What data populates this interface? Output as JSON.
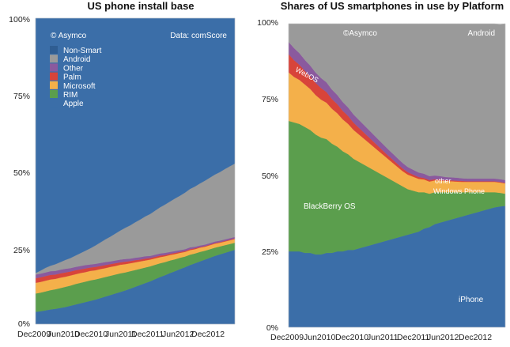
{
  "chart_data": [
    {
      "type": "area",
      "stacked": true,
      "title": "US phone install base",
      "yticks": [
        "0%",
        "25%",
        "50%",
        "75%",
        "100%"
      ],
      "xtick_labels": [
        "Dec2009",
        "Jun2010",
        "Dec2010",
        "Jun2011",
        "Dec2011",
        "Jun2012",
        "Dec2012"
      ],
      "ylim": [
        0,
        100
      ],
      "x": [
        0,
        1,
        2,
        3,
        4,
        5,
        6,
        7,
        8,
        9,
        10,
        11,
        12,
        13,
        14,
        15,
        16,
        17,
        18,
        19,
        20,
        21,
        22,
        23,
        24,
        25,
        26,
        27,
        28,
        29,
        30,
        31,
        32,
        33,
        34,
        35,
        36,
        37,
        38,
        39,
        40
      ],
      "series": [
        {
          "name": "Apple",
          "color": "#3b6ea8",
          "values": [
            4.0,
            4.2,
            4.5,
            4.8,
            5.0,
            5.3,
            5.6,
            6.0,
            6.4,
            6.8,
            7.2,
            7.6,
            8.0,
            8.5,
            9.0,
            9.5,
            10.0,
            10.5,
            11.0,
            11.6,
            12.2,
            12.8,
            13.4,
            14.0,
            14.7,
            15.4,
            16.0,
            16.7,
            17.3,
            18.0,
            18.6,
            19.3,
            19.9,
            20.5,
            21.1,
            21.7,
            22.3,
            22.8,
            23.3,
            23.8,
            24.3
          ]
        },
        {
          "name": "RIM",
          "color": "#5b9e4d",
          "values": [
            6.0,
            6.1,
            6.2,
            6.3,
            6.4,
            6.5,
            6.6,
            6.6,
            6.7,
            6.7,
            6.7,
            6.7,
            6.6,
            6.5,
            6.4,
            6.3,
            6.2,
            6.1,
            5.9,
            5.7,
            5.5,
            5.3,
            5.1,
            4.9,
            4.7,
            4.5,
            4.3,
            4.1,
            3.9,
            3.7,
            3.5,
            3.4,
            3.2,
            3.1,
            2.9,
            2.8,
            2.7,
            2.6,
            2.5,
            2.4,
            2.3
          ]
        },
        {
          "name": "Microsoft",
          "color": "#f4b04a",
          "values": [
            3.5,
            3.5,
            3.5,
            3.5,
            3.4,
            3.4,
            3.3,
            3.3,
            3.2,
            3.2,
            3.1,
            3.1,
            3.0,
            3.0,
            2.9,
            2.9,
            2.8,
            2.8,
            2.7,
            2.6,
            2.5,
            2.4,
            2.3,
            2.2,
            2.1,
            2.0,
            1.9,
            1.8,
            1.7,
            1.6,
            1.5,
            1.5,
            1.4,
            1.4,
            1.3,
            1.3,
            1.3,
            1.2,
            1.2,
            1.2,
            1.2
          ]
        },
        {
          "name": "Palm",
          "color": "#d8443a",
          "values": [
            1.5,
            1.5,
            1.5,
            1.5,
            1.4,
            1.4,
            1.4,
            1.3,
            1.3,
            1.2,
            1.2,
            1.1,
            1.1,
            1.0,
            1.0,
            0.9,
            0.9,
            0.8,
            0.8,
            0.7,
            0.7,
            0.6,
            0.6,
            0.5,
            0.5,
            0.5,
            0.4,
            0.4,
            0.4,
            0.3,
            0.3,
            0.3,
            0.3,
            0.2,
            0.2,
            0.2,
            0.2,
            0.2,
            0.2,
            0.2,
            0.2
          ]
        },
        {
          "name": "Other",
          "color": "#8a5a9e",
          "values": [
            1.2,
            1.2,
            1.2,
            1.2,
            1.2,
            1.2,
            1.2,
            1.1,
            1.1,
            1.1,
            1.1,
            1.0,
            1.0,
            1.0,
            1.0,
            0.9,
            0.9,
            0.9,
            0.9,
            0.8,
            0.8,
            0.8,
            0.8,
            0.7,
            0.7,
            0.7,
            0.7,
            0.6,
            0.6,
            0.6,
            0.6,
            0.6,
            0.5,
            0.5,
            0.5,
            0.5,
            0.5,
            0.5,
            0.5,
            0.5,
            0.5
          ]
        },
        {
          "name": "Android",
          "color": "#9a9a9a",
          "values": [
            0.5,
            1.0,
            1.5,
            1.8,
            2.2,
            2.5,
            2.9,
            3.3,
            3.7,
            4.2,
            4.7,
            5.3,
            6.0,
            6.7,
            7.4,
            8.1,
            8.8,
            9.5,
            10.2,
            10.9,
            11.6,
            12.3,
            13.0,
            13.7,
            14.4,
            15.1,
            15.8,
            16.5,
            17.2,
            17.8,
            18.5,
            19.1,
            19.7,
            20.3,
            20.9,
            21.4,
            21.9,
            22.4,
            23.0,
            23.5,
            24.0
          ]
        },
        {
          "name": "Non-Smart",
          "color": "#3b6ea8",
          "values": [
            83.3,
            82.5,
            81.6,
            80.9,
            80.4,
            79.7,
            79.0,
            78.4,
            77.6,
            76.8,
            76.0,
            75.2,
            74.3,
            73.3,
            72.3,
            71.4,
            70.4,
            69.4,
            68.5,
            67.7,
            66.7,
            65.8,
            64.8,
            64.0,
            62.9,
            61.8,
            60.9,
            59.9,
            58.9,
            58.0,
            57.0,
            55.8,
            55.0,
            54.0,
            53.1,
            52.1,
            51.1,
            50.3,
            49.3,
            48.4,
            47.5
          ]
        }
      ],
      "legend": [
        "Non-Smart",
        "Android",
        "Other",
        "Palm",
        "Microsoft",
        "RIM",
        "Apple"
      ],
      "legend_position": "top-left",
      "annotations": [
        "© Asymco",
        "Data: comScore"
      ]
    },
    {
      "type": "area",
      "stacked": true,
      "title": "Shares of US smartphones in use by Platform",
      "yticks": [
        "0%",
        "25%",
        "50%",
        "75%",
        "100%"
      ],
      "xtick_labels": [
        "Dec2009",
        "Jun2010",
        "Dec2010",
        "Jun2011",
        "Dec2011",
        "Jun2012",
        "Dec2012"
      ],
      "ylim": [
        0,
        100
      ],
      "x": [
        0,
        1,
        2,
        3,
        4,
        5,
        6,
        7,
        8,
        9,
        10,
        11,
        12,
        13,
        14,
        15,
        16,
        17,
        18,
        19,
        20,
        21,
        22,
        23,
        24,
        25,
        26,
        27,
        28,
        29,
        30,
        31,
        32,
        33,
        34,
        35,
        36,
        37,
        38,
        39,
        40
      ],
      "series": [
        {
          "name": "iPhone",
          "color": "#3b6ea8",
          "values": [
            25,
            25,
            25,
            24.5,
            24.5,
            24,
            24,
            24.5,
            24.5,
            25,
            25,
            25.5,
            25.5,
            26,
            26.5,
            27,
            27.5,
            28,
            28.5,
            29,
            29.5,
            30,
            30.5,
            31,
            31.5,
            32.5,
            33,
            34,
            34.5,
            35,
            35.5,
            36,
            36.5,
            37,
            37.5,
            38,
            38.5,
            39,
            39.5,
            39.8,
            40
          ]
        },
        {
          "name": "BlackBerry OS",
          "color": "#5b9e4d",
          "values": [
            43,
            42.5,
            42,
            41.5,
            40.5,
            39.5,
            38.5,
            37.5,
            36,
            34.5,
            33,
            31.5,
            30,
            28.5,
            27,
            25.5,
            24,
            22.5,
            21,
            19.5,
            18,
            16.5,
            15,
            14,
            13,
            12,
            11,
            10.5,
            10,
            9.5,
            9,
            8.5,
            8,
            7.5,
            7,
            6.5,
            6,
            5.5,
            5,
            4.5,
            4
          ]
        },
        {
          "name": "Windows Phone",
          "color": "#f4b04a",
          "values": [
            16,
            15,
            14.5,
            14,
            13.5,
            13,
            12.5,
            12,
            11.5,
            11,
            10.5,
            10,
            9.5,
            9,
            8.5,
            8,
            7.5,
            7,
            6.5,
            6,
            5.5,
            5,
            4.8,
            4.6,
            4.4,
            4.2,
            4,
            3.9,
            3.8,
            3.7,
            3.6,
            3.5,
            3.4,
            3.4,
            3.4,
            3.4,
            3.4,
            3.4,
            3.4,
            3.4,
            3.4
          ]
        },
        {
          "name": "WebOS",
          "color": "#d8443a",
          "values": [
            6,
            5.5,
            5,
            4.5,
            4.2,
            4,
            3.8,
            3.5,
            3.2,
            3,
            2.8,
            2.6,
            2.4,
            2.2,
            2,
            1.8,
            1.6,
            1.4,
            1.2,
            1.1,
            1,
            0.9,
            0.8,
            0.7,
            0.6,
            0.5,
            0.5,
            0.4,
            0.4,
            0.3,
            0.3,
            0.3,
            0.3,
            0.2,
            0.2,
            0.2,
            0.2,
            0.2,
            0.2,
            0.2,
            0.2
          ]
        },
        {
          "name": "other",
          "color": "#8a5a9e",
          "values": [
            4,
            4,
            3.8,
            3.6,
            3.5,
            3.4,
            3.3,
            3.2,
            3.1,
            3,
            2.9,
            2.8,
            2.7,
            2.6,
            2.5,
            2.4,
            2.3,
            2.2,
            2.1,
            2,
            1.9,
            1.8,
            1.7,
            1.6,
            1.5,
            1.4,
            1.3,
            1.2,
            1.1,
            1.0,
            1.0,
            1.0,
            0.9,
            0.9,
            0.9,
            0.9,
            0.9,
            0.9,
            0.9,
            0.9,
            0.9
          ]
        },
        {
          "name": "Android",
          "color": "#9a9a9a",
          "values": [
            6,
            8,
            9.7,
            11.9,
            13.8,
            16.1,
            17.9,
            19.3,
            21.7,
            23.5,
            25.8,
            27.6,
            29.9,
            31.7,
            33.5,
            35.3,
            37.1,
            38.9,
            40.7,
            42.4,
            44.1,
            45.8,
            47.2,
            48.1,
            49,
            49.4,
            50.2,
            50,
            50.2,
            50.5,
            50.6,
            50.7,
            50.9,
            51,
            51,
            51,
            51,
            51,
            51,
            51,
            51.5
          ]
        }
      ],
      "area_labels": [
        "©Asymco",
        "Android",
        "WebOS",
        "BlackBerry OS",
        "other",
        "Windows Phone",
        "iPhone"
      ]
    }
  ]
}
